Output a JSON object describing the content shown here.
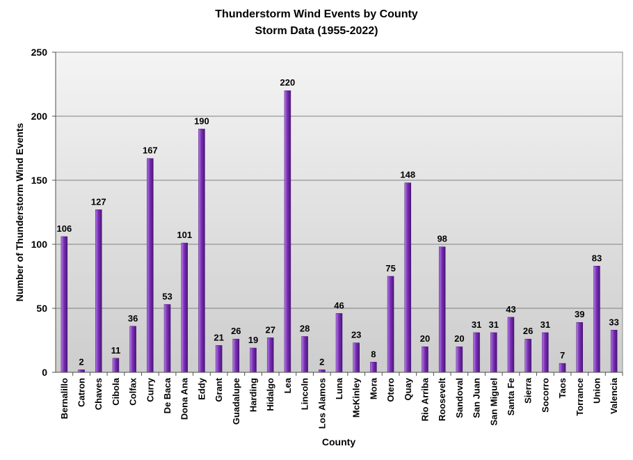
{
  "chart_data": {
    "type": "bar",
    "title": "Thunderstorm Wind Events by County",
    "subtitle": "Storm Data (1955-2022)",
    "xlabel": "County",
    "ylabel": "Number of Thunderstorm Wind Events",
    "ylim": [
      0,
      250
    ],
    "yticks": [
      0,
      50,
      100,
      150,
      200,
      250
    ],
    "grid": true,
    "legend": "none",
    "categories": [
      "Bernalillo",
      "Catron",
      "Chaves",
      "Cibola",
      "Colfax",
      "Curry",
      "De Baca",
      "Dona Ana",
      "Eddy",
      "Grant",
      "Guadalupe",
      "Harding",
      "Hidalgo",
      "Lea",
      "Lincoln",
      "Los Alamos",
      "Luna",
      "McKinley",
      "Mora",
      "Otero",
      "Quay",
      "Rio Arriba",
      "Roosevelt",
      "Sandoval",
      "San Juan",
      "San Miguel",
      "Santa Fe",
      "Sierra",
      "Socorro",
      "Taos",
      "Torrance",
      "Union",
      "Valencia"
    ],
    "values": [
      106,
      2,
      127,
      11,
      36,
      167,
      53,
      101,
      190,
      21,
      26,
      19,
      27,
      220,
      28,
      2,
      46,
      23,
      8,
      75,
      148,
      20,
      98,
      20,
      31,
      31,
      43,
      26,
      31,
      7,
      39,
      83,
      33
    ],
    "colors": {
      "bar": "#7b2fb6",
      "bar_light": "#b57ee6",
      "bar_dark": "#4a1478",
      "plot_bg_top": "#f4f4f4",
      "plot_bg_bottom": "#cfcfcf",
      "grid": "#7f7f7f"
    }
  }
}
